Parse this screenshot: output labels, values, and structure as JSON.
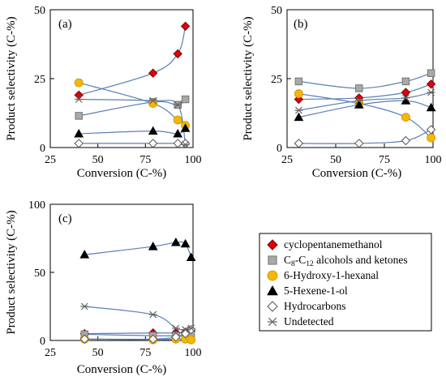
{
  "series_styles": {
    "cyclopentanemethanol": {
      "marker": "diamond",
      "fill": "#e0000a",
      "stroke": "#7a0000"
    },
    "alcohols_ketones": {
      "marker": "square",
      "fill": "#a8a8a8",
      "stroke": "#777777"
    },
    "hydroxyhexanal": {
      "marker": "circle",
      "fill": "#f5b800",
      "stroke": "#c98f00"
    },
    "hexenol": {
      "marker": "triangle",
      "fill": "#000000",
      "stroke": "#000000"
    },
    "hydrocarbons": {
      "marker": "diamond-open",
      "fill": "#ffffff",
      "stroke": "#555555"
    },
    "undetected": {
      "marker": "asterisk",
      "fill": "none",
      "stroke": "#666666"
    }
  },
  "legend": {
    "cyclopentanemethanol": "cyclopentanemethanol",
    "alcohols_ketones_prefix": "C",
    "alcohols_ketones_sub1": "8",
    "alcohols_ketones_mid": "-C",
    "alcohols_ketones_sub2": "12",
    "alcohols_ketones_suffix": " alcohols and ketones",
    "hydroxyhexanal": "6-Hydroxy-1-hexanal",
    "hexenol": "5-Hexene-1-ol",
    "hydrocarbons": "Hydrocarbons",
    "undetected": "Undetected"
  },
  "chart_data": [
    {
      "type": "scatter",
      "panel_label": "(a)",
      "xlabel": "Conversion (C-%)",
      "ylabel": "Product selectivity (C-%)",
      "xlim": [
        25,
        100
      ],
      "ylim": [
        0,
        50
      ],
      "xticks": [
        "25",
        "50",
        "75",
        "100"
      ],
      "yticks": [
        "0",
        "25",
        "50"
      ],
      "series": [
        {
          "key": "cyclopentanemethanol",
          "x": [
            40,
            79,
            92,
            96
          ],
          "y": [
            19,
            27,
            34,
            44
          ]
        },
        {
          "key": "alcohols_ketones",
          "x": [
            40,
            79,
            92,
            96
          ],
          "y": [
            11.5,
            16.5,
            15.5,
            17.5
          ]
        },
        {
          "key": "hydroxyhexanal",
          "x": [
            40,
            79,
            92,
            96
          ],
          "y": [
            23.5,
            16,
            10,
            8
          ]
        },
        {
          "key": "hexenol",
          "x": [
            40,
            79,
            92,
            96
          ],
          "y": [
            5,
            6,
            5,
            7
          ]
        },
        {
          "key": "hydrocarbons",
          "x": [
            40,
            79,
            92,
            96
          ],
          "y": [
            1.5,
            1.5,
            1.5,
            1.5
          ]
        },
        {
          "key": "undetected",
          "x": [
            40,
            79,
            92,
            96
          ],
          "y": [
            17.5,
            17,
            15.5,
            1
          ]
        }
      ]
    },
    {
      "type": "scatter",
      "panel_label": "(b)",
      "xlabel": "Conversion (C-%)",
      "ylabel": "Product selectivity (C-%)",
      "xlim": [
        25,
        100
      ],
      "ylim": [
        0,
        50
      ],
      "xticks": [
        "25",
        "50",
        "75",
        "100"
      ],
      "yticks": [
        "0",
        "25",
        "50"
      ],
      "series": [
        {
          "key": "cyclopentanemethanol",
          "x": [
            31,
            62,
            86,
            99
          ],
          "y": [
            17.5,
            18,
            20,
            23
          ]
        },
        {
          "key": "alcohols_ketones",
          "x": [
            31,
            62,
            86,
            99
          ],
          "y": [
            24,
            21.5,
            24,
            27
          ]
        },
        {
          "key": "hydroxyhexanal",
          "x": [
            31,
            62,
            86,
            99
          ],
          "y": [
            19.5,
            16,
            11,
            3.5
          ]
        },
        {
          "key": "hexenol",
          "x": [
            31,
            62,
            86,
            99
          ],
          "y": [
            11,
            15.5,
            17,
            14.5
          ]
        },
        {
          "key": "hydrocarbons",
          "x": [
            31,
            62,
            86,
            99
          ],
          "y": [
            1.5,
            1.5,
            2.5,
            6.5
          ]
        },
        {
          "key": "undetected",
          "x": [
            31,
            62,
            86,
            99
          ],
          "y": [
            13.5,
            17,
            18,
            20
          ]
        }
      ]
    },
    {
      "type": "scatter",
      "panel_label": "(c)",
      "xlabel": "Conversion (C-%)",
      "ylabel": "Product selectivity (C-%)",
      "xlim": [
        25,
        100
      ],
      "ylim": [
        0,
        100
      ],
      "xticks": [
        "25",
        "50",
        "75",
        "100"
      ],
      "yticks": [
        "0",
        "50",
        "100"
      ],
      "series": [
        {
          "key": "cyclopentanemethanol",
          "x": [
            43,
            79,
            91,
            96,
            99
          ],
          "y": [
            5,
            5.5,
            5.5,
            6,
            7
          ]
        },
        {
          "key": "alcohols_ketones",
          "x": [
            43,
            79,
            91,
            96,
            99
          ],
          "y": [
            4.5,
            3.5,
            3.5,
            4,
            4.5
          ]
        },
        {
          "key": "hydroxyhexanal",
          "x": [
            43,
            79,
            91,
            96,
            99
          ],
          "y": [
            1,
            0.5,
            1,
            1,
            0.5
          ]
        },
        {
          "key": "hexenol",
          "x": [
            43,
            79,
            91,
            96,
            99
          ],
          "y": [
            63,
            69,
            72,
            71,
            61
          ]
        },
        {
          "key": "hydrocarbons",
          "x": [
            43,
            79,
            91,
            96,
            99
          ],
          "y": [
            1,
            1,
            2.5,
            5,
            8
          ]
        },
        {
          "key": "undetected",
          "x": [
            43,
            79,
            91,
            96,
            99
          ],
          "y": [
            25,
            19,
            9,
            8,
            9
          ]
        }
      ]
    }
  ]
}
